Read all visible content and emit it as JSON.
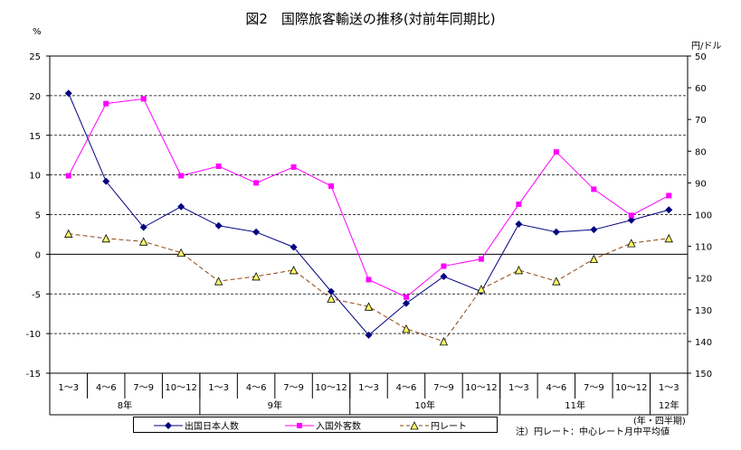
{
  "title": "図2　国際旅客輸送の推移(対前年同期比)",
  "chart_data": {
    "type": "line",
    "left_unit": "%",
    "right_unit": "円/ドル",
    "left_ylim": [
      -15,
      25
    ],
    "left_ticks": [
      25,
      20,
      15,
      10,
      5,
      0,
      -5,
      -10,
      -15
    ],
    "right_ylim": [
      50,
      150
    ],
    "right_ticks": [
      50,
      60,
      70,
      80,
      90,
      100,
      110,
      120,
      130,
      140,
      150
    ],
    "right_axis_inverted": true,
    "categories": [
      "1～3",
      "4～6",
      "7～9",
      "10～12",
      "1～3",
      "4～6",
      "7～9",
      "10～12",
      "1～3",
      "4～6",
      "7～9",
      "10～12",
      "1～3",
      "4～6",
      "7～9",
      "10～12",
      "1～3"
    ],
    "year_groups": [
      {
        "label": "8年",
        "span": 4
      },
      {
        "label": "9年",
        "span": 4
      },
      {
        "label": "10年",
        "span": 4
      },
      {
        "label": "11年",
        "span": 4
      },
      {
        "label": "12年",
        "span": 1
      }
    ],
    "series": [
      {
        "name": "出国日本人数",
        "axis": "left",
        "color": "#000080",
        "marker": "diamond",
        "values": [
          20.3,
          9.2,
          3.4,
          6.0,
          3.6,
          2.8,
          0.9,
          -4.7,
          -10.2,
          -6.2,
          -2.8,
          -4.7,
          3.8,
          2.8,
          3.1,
          4.3,
          5.6
        ]
      },
      {
        "name": "入国外客数",
        "axis": "left",
        "color": "#ff00ff",
        "marker": "square",
        "values": [
          9.9,
          19.0,
          19.6,
          9.9,
          11.1,
          9.0,
          11.0,
          8.6,
          -3.2,
          -5.4,
          -1.5,
          -0.6,
          6.3,
          12.9,
          8.2,
          4.9,
          7.4
        ]
      },
      {
        "name": "円レート",
        "axis": "right",
        "color": "#8b4513",
        "marker": "triangle",
        "dashed": true,
        "values": [
          106,
          107.5,
          108.5,
          112,
          121,
          119.5,
          117.5,
          126.5,
          129,
          136,
          140,
          123.5,
          117.5,
          121,
          114,
          109,
          107.5
        ]
      }
    ],
    "grid": true,
    "legend_placement": "bottom"
  },
  "year_axis_note": "(年・四半期)",
  "footnote": "注）円レート：中心レート月中平均値"
}
